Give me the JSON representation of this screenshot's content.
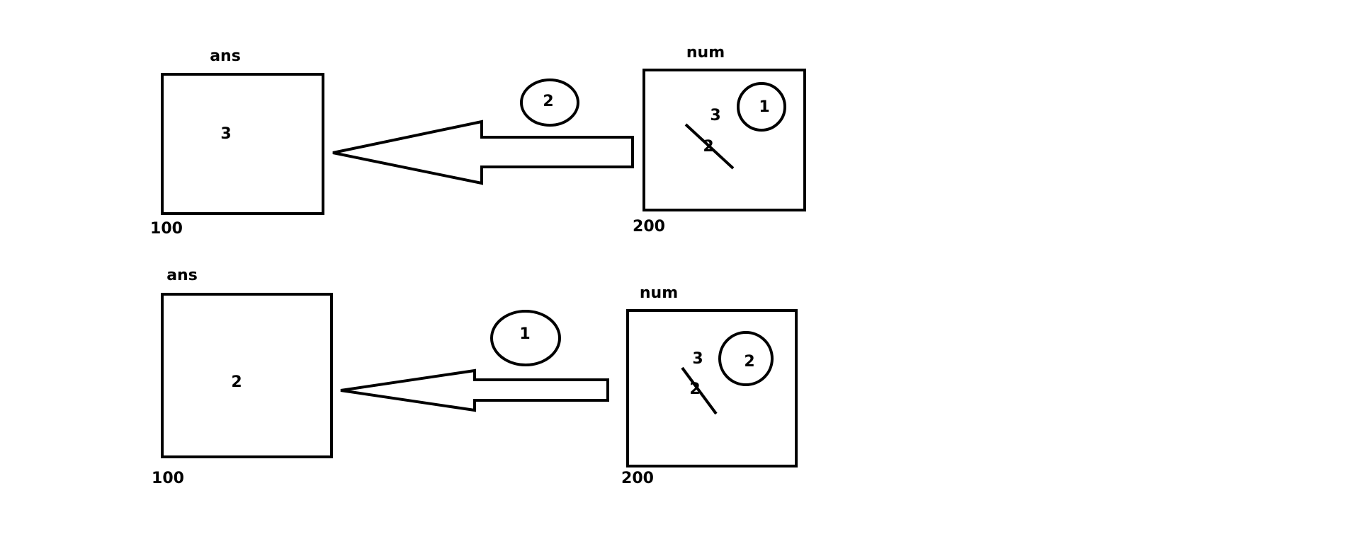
{
  "diagrams": [
    {
      "ans_label": "ans",
      "ans_value": "3",
      "ans_address": "100",
      "step_number": "2",
      "num_label": "num",
      "num_new_value": "3",
      "num_old_value": "2",
      "num_circled": "1",
      "num_address": "200"
    },
    {
      "ans_label": "ans",
      "ans_value": "2",
      "ans_address": "100",
      "step_number": "1",
      "num_label": "num",
      "num_new_value": "3",
      "num_old_value": "2",
      "num_circled": "2",
      "num_address": "200"
    }
  ],
  "colors": {
    "stroke": "#000000",
    "background": "#ffffff"
  }
}
